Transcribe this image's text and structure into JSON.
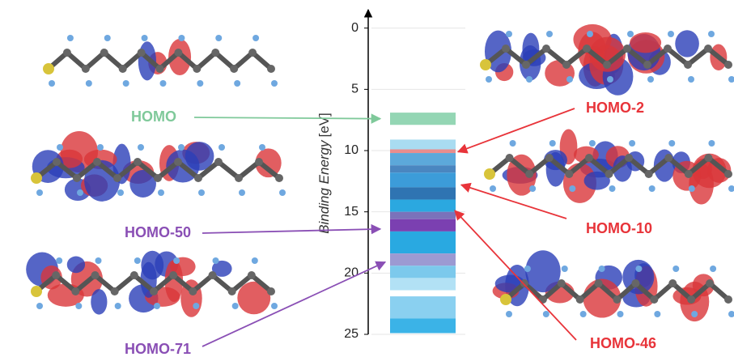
{
  "chart_data": {
    "type": "energy-levels",
    "y_label": "Binding Energy",
    "y_unit": "[eV]",
    "ylim": [
      -1.5,
      25
    ],
    "inverted": true,
    "yticks": [
      0,
      5,
      10,
      15,
      20,
      25
    ],
    "bands": [
      {
        "from": 6.9,
        "to": 7.9,
        "color": "#94d6b4"
      },
      {
        "from": 9.1,
        "to": 9.9,
        "color": "#a9dcf1"
      },
      {
        "from": 9.9,
        "to": 10.2,
        "color": "#e98d8d"
      },
      {
        "from": 10.2,
        "to": 11.2,
        "color": "#5ca8da"
      },
      {
        "from": 11.2,
        "to": 11.8,
        "color": "#4a86c0"
      },
      {
        "from": 11.8,
        "to": 13.0,
        "color": "#3c9cd9"
      },
      {
        "from": 13.0,
        "to": 14.0,
        "color": "#2f74b2"
      },
      {
        "from": 14.0,
        "to": 15.0,
        "color": "#2ba8e0"
      },
      {
        "from": 15.0,
        "to": 15.6,
        "color": "#7b72ba"
      },
      {
        "from": 15.6,
        "to": 16.6,
        "color": "#7b40b1"
      },
      {
        "from": 16.6,
        "to": 18.4,
        "color": "#29a9e1"
      },
      {
        "from": 18.4,
        "to": 19.4,
        "color": "#9c9ad2"
      },
      {
        "from": 19.4,
        "to": 20.4,
        "color": "#7cc9ec"
      },
      {
        "from": 20.4,
        "to": 21.4,
        "color": "#b2e1f5"
      },
      {
        "from": 21.9,
        "to": 23.7,
        "color": "#8ad0f0"
      },
      {
        "from": 23.7,
        "to": 24.9,
        "color": "#3bb3e7"
      }
    ],
    "annotations": [
      {
        "text": "HOMO",
        "energy": 7.4,
        "color": "#7fc99a"
      },
      {
        "text": "HOMO-2",
        "energy": 10.1,
        "color": "#e8343a"
      },
      {
        "text": "HOMO-10",
        "energy": 12.8,
        "color": "#e8343a"
      },
      {
        "text": "HOMO-50",
        "energy": 16.4,
        "color": "#8a4fb5"
      },
      {
        "text": "HOMO-71",
        "energy": 19.1,
        "color": "#8a4fb5"
      },
      {
        "text": "HOMO-46",
        "energy": 14.9,
        "color": "#e8343a"
      }
    ]
  }
}
